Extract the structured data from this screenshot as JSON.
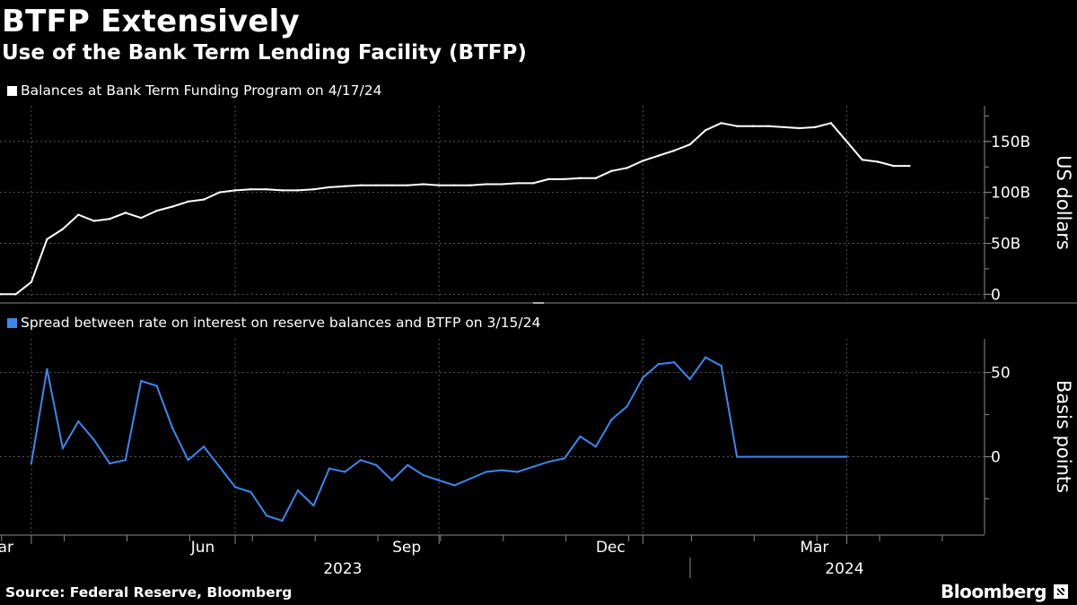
{
  "title": "BTFP Extensively",
  "subtitle": "Use of the Bank Term Lending Facility (BTFP)",
  "colors": {
    "background": "#000000",
    "series1": "#ffffff",
    "series2": "#3b87f0",
    "grid": "#555555",
    "axis": "#888888"
  },
  "source": "Source: Federal Reserve, Bloomberg",
  "brand": "Bloomberg",
  "chart_data": [
    {
      "type": "line",
      "legend": "Balances at Bank Term Funding Program on 4/17/24",
      "ylabel": "US dollars",
      "ylim": [
        -5,
        185
      ],
      "yticks": [
        0,
        50,
        100,
        150
      ],
      "ytick_labels": [
        "0",
        "50B",
        "100B",
        "150B"
      ],
      "x_weeks": [
        0,
        1,
        2,
        3,
        4,
        5,
        6,
        7,
        8,
        9,
        10,
        11,
        12,
        13,
        14,
        15,
        16,
        17,
        18,
        19,
        20,
        21,
        22,
        23,
        24,
        25,
        26,
        27,
        28,
        29,
        30,
        31,
        32,
        33,
        34,
        35,
        36,
        37,
        38,
        39,
        40,
        41,
        42,
        43,
        44,
        45,
        46,
        47,
        48,
        49,
        50,
        51,
        52,
        53,
        54,
        55,
        56,
        57,
        58,
        59,
        60
      ],
      "values": [
        0,
        0,
        12,
        54,
        64,
        78,
        72,
        74,
        80,
        75,
        82,
        86,
        91,
        93,
        100,
        102,
        103,
        103,
        102,
        102,
        103,
        105,
        106,
        107,
        107,
        107,
        107,
        108,
        107,
        107,
        107,
        108,
        108,
        109,
        109,
        113,
        113,
        114,
        114,
        121,
        124,
        131,
        136,
        141,
        147,
        161,
        168,
        165,
        165,
        165,
        164,
        163,
        164,
        168,
        150,
        132,
        130,
        126,
        126,
        null,
        null
      ]
    },
    {
      "type": "line",
      "legend": "Spread between rate on interest on reserve balances and BTFP  on 3/15/24",
      "ylabel": "Basis points",
      "ylim": [
        -46,
        70
      ],
      "yticks": [
        0,
        50
      ],
      "ytick_labels": [
        "0",
        "50"
      ],
      "x_weeks": [
        0,
        1,
        2,
        3,
        4,
        5,
        6,
        7,
        8,
        9,
        10,
        11,
        12,
        13,
        14,
        15,
        16,
        17,
        18,
        19,
        20,
        21,
        22,
        23,
        24,
        25,
        26,
        27,
        28,
        29,
        30,
        31,
        32,
        33,
        34,
        35,
        36,
        37,
        38,
        39,
        40,
        41,
        42,
        43,
        44,
        45,
        46,
        47,
        48,
        49,
        50,
        51,
        52,
        53,
        54,
        55,
        56,
        57,
        58,
        59,
        60
      ],
      "values": [
        null,
        null,
        -4,
        52,
        5,
        21,
        10,
        -4,
        -2,
        45,
        42,
        17,
        -2,
        6,
        -6,
        -18,
        -21,
        -35,
        -38,
        -20,
        -29,
        -7,
        -9,
        -2,
        -5,
        -14,
        -5,
        -11,
        -14,
        -17,
        -13,
        -9,
        -8,
        -9,
        -6,
        -3,
        -1,
        12,
        6,
        22,
        30,
        47,
        55,
        56,
        46,
        59,
        54,
        0,
        0,
        0,
        0,
        0,
        0,
        0,
        0,
        null,
        null,
        null,
        null,
        null,
        null
      ]
    }
  ],
  "x_axis": {
    "months": [
      {
        "label": "Mar",
        "week": 2
      },
      {
        "label": "Jun",
        "week": 15
      },
      {
        "label": "Sep",
        "week": 28
      },
      {
        "label": "Dec",
        "week": 41
      },
      {
        "label": "Mar",
        "week": 54
      }
    ],
    "years": [
      {
        "label": "2023",
        "week": 21
      },
      {
        "label": "2024",
        "week": 53
      }
    ]
  }
}
